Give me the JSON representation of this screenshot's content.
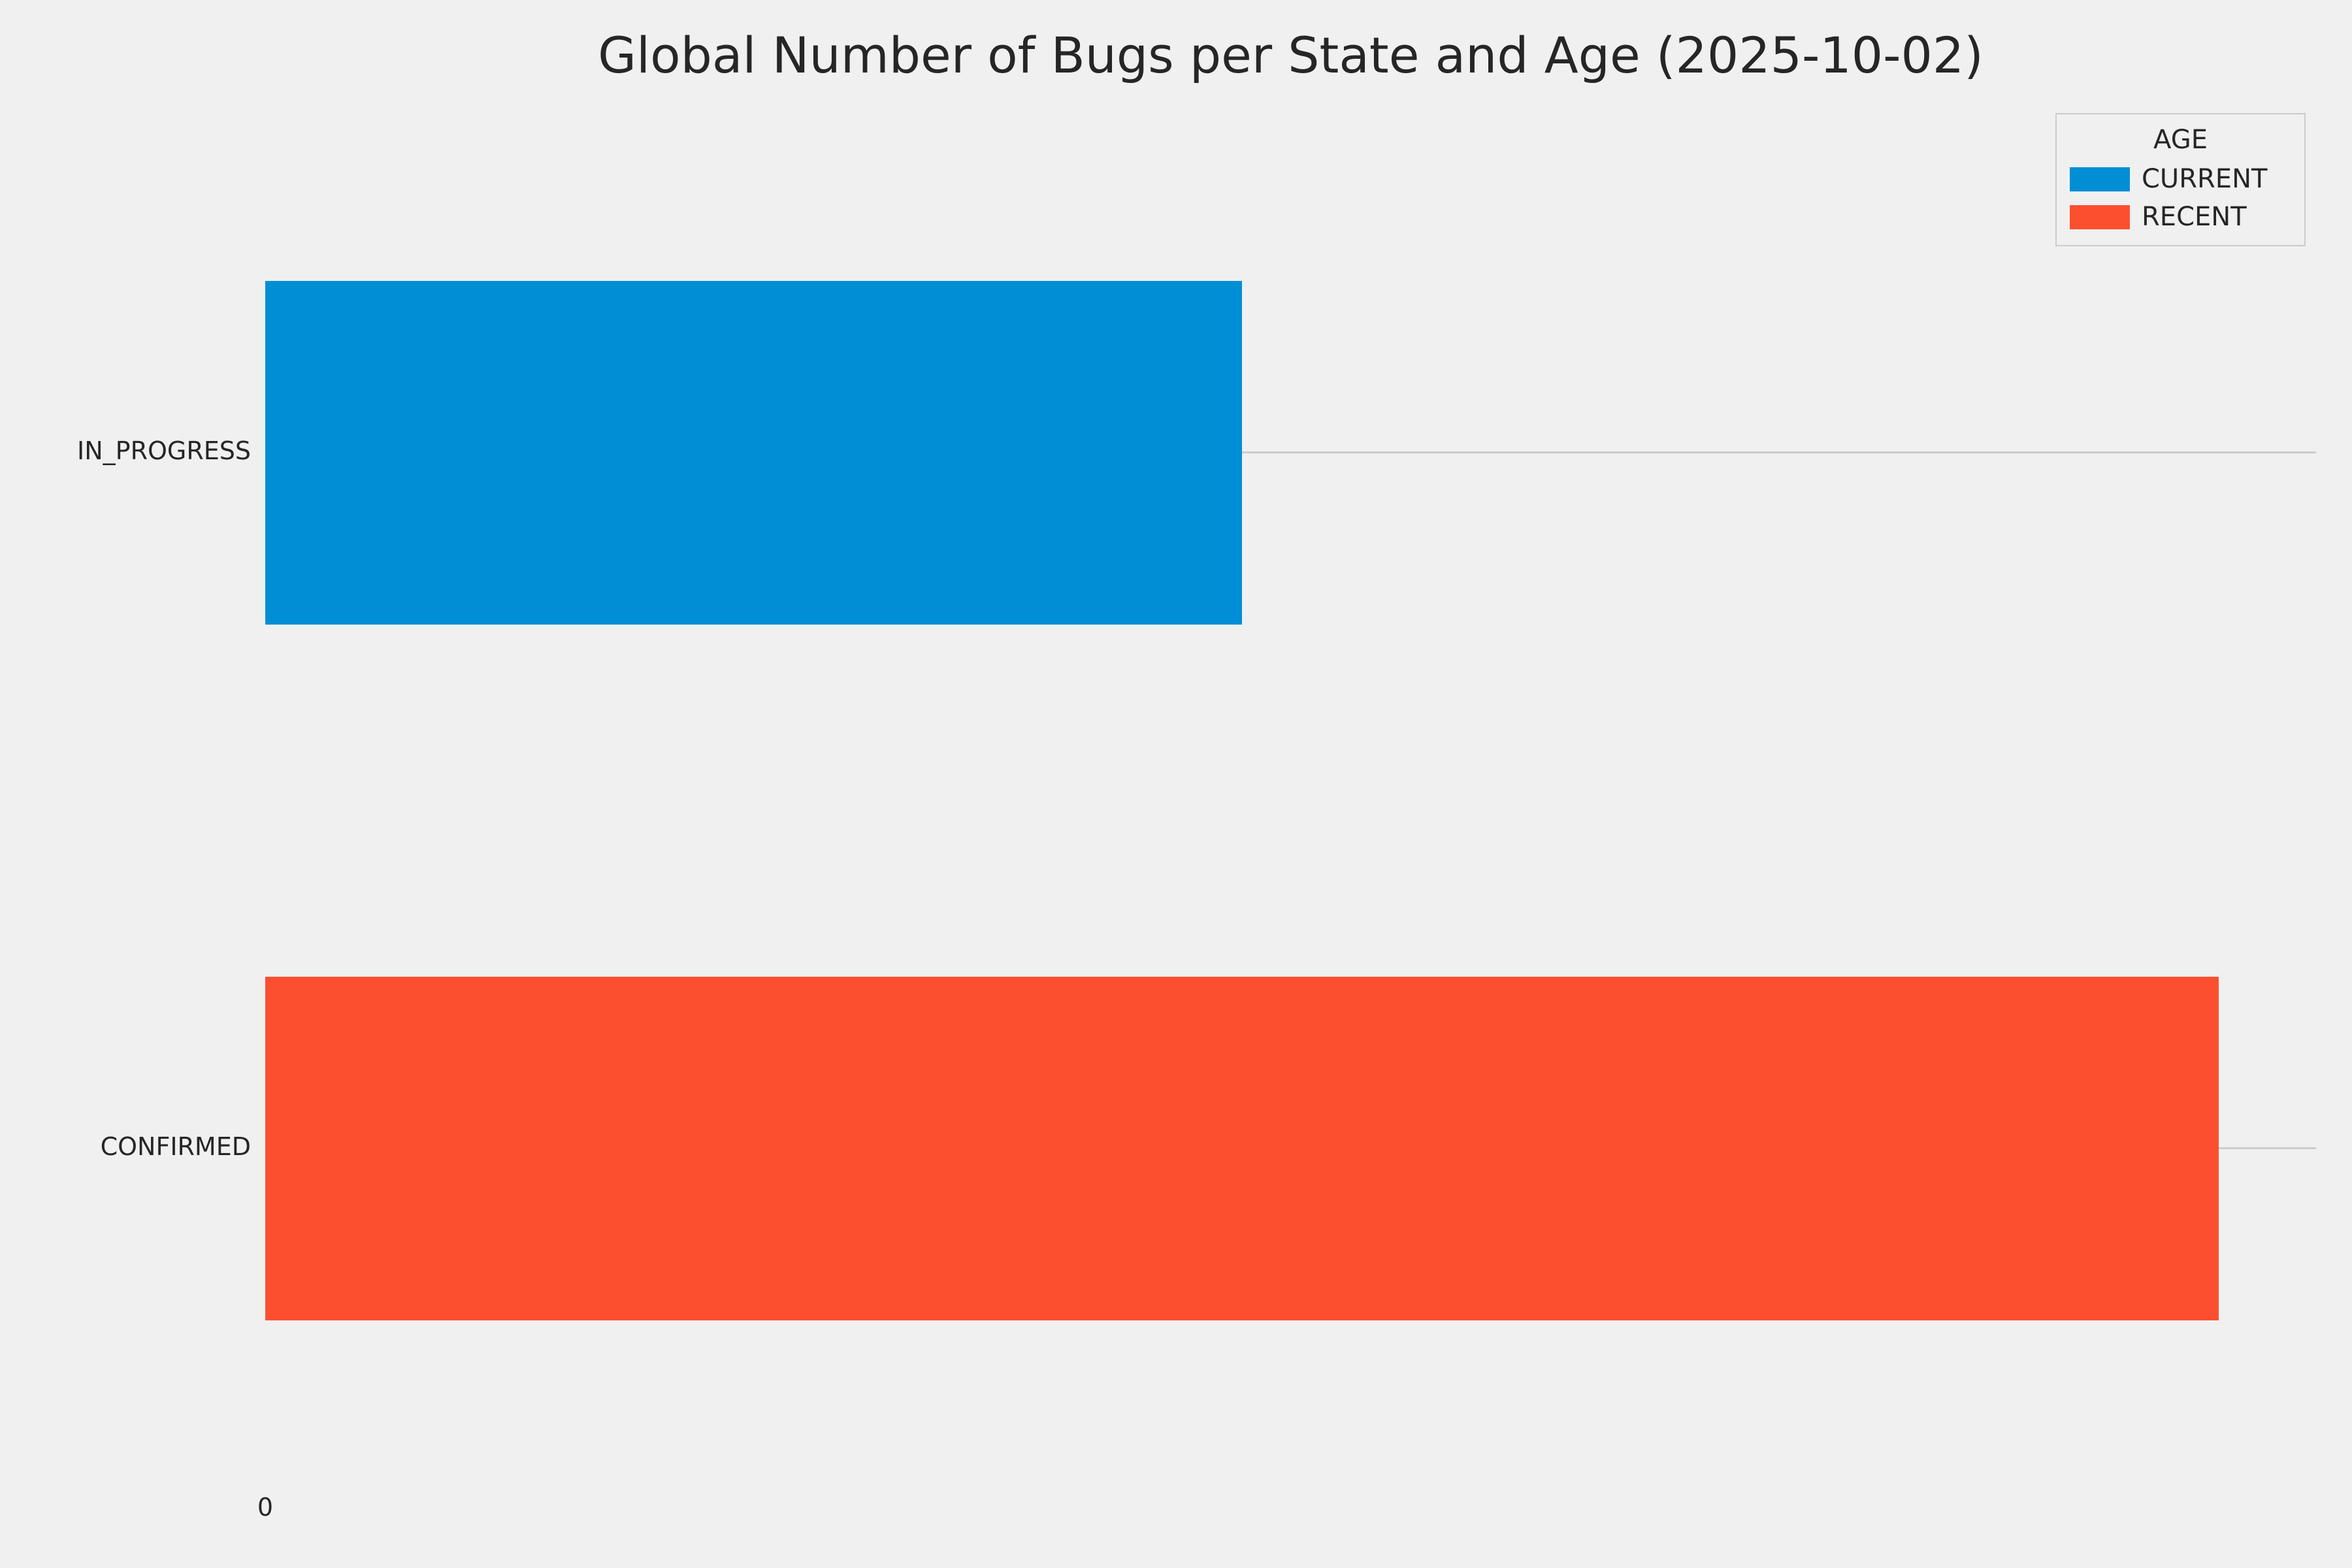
{
  "chart_data": {
    "type": "bar",
    "orientation": "horizontal",
    "title": "Global Number of Bugs per State and Age (2025-10-02)",
    "categories": [
      "IN_PROGRESS",
      "CONFIRMED"
    ],
    "series": [
      {
        "name": "CURRENT",
        "color": "#008fd5"
      },
      {
        "name": "RECENT",
        "color": "#fc4f30"
      }
    ],
    "bars": [
      {
        "category": "IN_PROGRESS",
        "series": "CURRENT",
        "value": 1,
        "color": "#008fd5"
      },
      {
        "category": "CONFIRMED",
        "series": "RECENT",
        "value": 2,
        "color": "#fc4f30"
      }
    ],
    "xlim": [
      0,
      2.1
    ],
    "x_tick_values": [
      0
    ],
    "x_tick_labels": [
      "0"
    ],
    "grid": true,
    "gridline_color": "#cbcbcb",
    "background_color": "#f0f0f0",
    "legend": {
      "title": "AGE",
      "position": "upper-right",
      "entries": [
        "CURRENT",
        "RECENT"
      ]
    }
  }
}
